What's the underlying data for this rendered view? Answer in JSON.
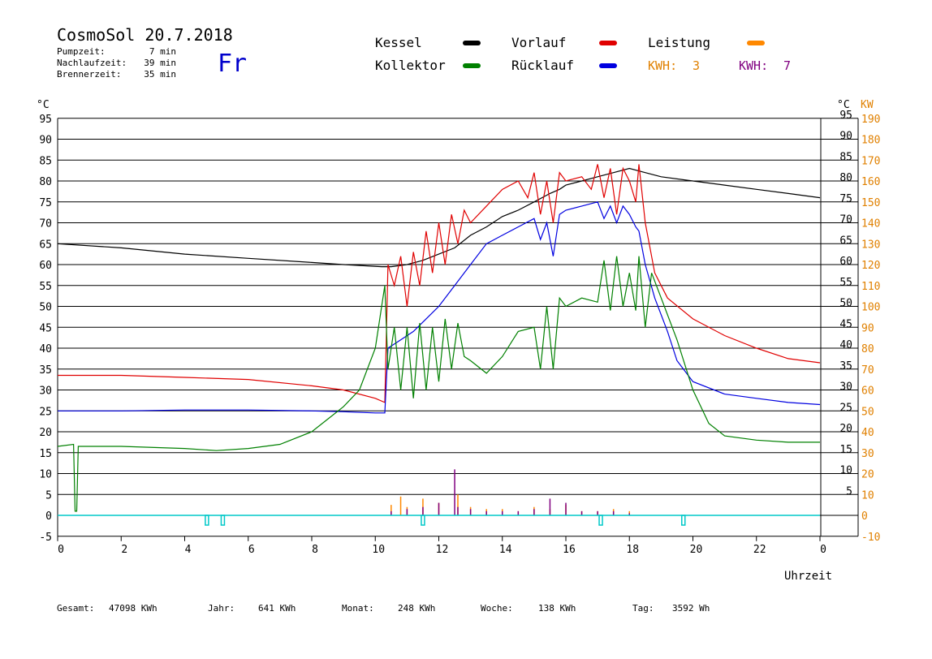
{
  "header": {
    "title": "CosmoSol 20.7.2018",
    "day": "Fr",
    "times": [
      {
        "label": "Pumpzeit:",
        "value": "7 min"
      },
      {
        "label": "Nachlaufzeit:",
        "value": "39 min"
      },
      {
        "label": "Brennerzeit:",
        "value": "35 min"
      }
    ]
  },
  "legend": {
    "items": [
      {
        "label": "Kessel",
        "color": "#000000"
      },
      {
        "label": "Vorlauf",
        "color": "#e00000"
      },
      {
        "label": "Leistung",
        "color": "#ff8800"
      },
      {
        "label": "Kollektor",
        "color": "#008000"
      },
      {
        "label": "Rücklauf",
        "color": "#0000e0"
      }
    ],
    "kwh": [
      {
        "label": "KWH:",
        "value": "3",
        "color": "#e08000"
      },
      {
        "label": "KWH:",
        "value": "7",
        "color": "#800080"
      }
    ]
  },
  "axes": {
    "left_unit": "°C",
    "right_unit_c": "°C",
    "right_unit_kw": "KW",
    "xlabel": "Uhrzeit",
    "x_ticks": [
      "0",
      "2",
      "4",
      "6",
      "8",
      "10",
      "12",
      "14",
      "16",
      "18",
      "20",
      "22",
      "0"
    ],
    "y_ticks_left": [
      "-5",
      "0",
      "5",
      "10",
      "15",
      "20",
      "25",
      "30",
      "35",
      "40",
      "45",
      "50",
      "55",
      "60",
      "65",
      "70",
      "75",
      "80",
      "85",
      "90",
      "95"
    ],
    "y_ticks_right_c": [
      "5",
      "10",
      "15",
      "20",
      "25",
      "30",
      "35",
      "40",
      "45",
      "50",
      "55",
      "60",
      "65",
      "70",
      "75",
      "80",
      "85",
      "90",
      "95"
    ],
    "y_ticks_right_kw": [
      "-10",
      "0",
      "10",
      "20",
      "30",
      "40",
      "50",
      "60",
      "70",
      "80",
      "90",
      "100",
      "110",
      "120",
      "130",
      "140",
      "150",
      "160",
      "170",
      "180",
      "190"
    ]
  },
  "footer": [
    {
      "label": "Gesamt:",
      "value": "47098 KWh"
    },
    {
      "label": "Jahr:",
      "value": "641 KWh"
    },
    {
      "label": "Monat:",
      "value": "248 KWh"
    },
    {
      "label": "Woche:",
      "value": "138 KWh"
    },
    {
      "label": "Tag:",
      "value": "3592 Wh"
    }
  ],
  "chart_data": {
    "type": "line",
    "title": "CosmoSol 20.7.2018",
    "xlabel": "Uhrzeit",
    "ylabel": "°C",
    "xlim": [
      0,
      24
    ],
    "ylim": [
      -5,
      100
    ],
    "grid": true,
    "legend_position": "top",
    "series": [
      {
        "name": "Kessel",
        "color": "#000000",
        "points": [
          [
            0,
            65
          ],
          [
            2,
            64
          ],
          [
            4,
            62.5
          ],
          [
            6,
            61.5
          ],
          [
            8,
            60.5
          ],
          [
            9,
            60
          ],
          [
            10.2,
            59.5
          ],
          [
            10.5,
            59.5
          ],
          [
            11,
            60
          ],
          [
            11.5,
            61
          ],
          [
            12,
            62.5
          ],
          [
            12.5,
            64
          ],
          [
            13,
            67
          ],
          [
            13.5,
            69
          ],
          [
            14,
            71.5
          ],
          [
            14.5,
            73
          ],
          [
            15,
            75
          ],
          [
            15.5,
            77
          ],
          [
            15.8,
            78
          ],
          [
            16,
            79
          ],
          [
            16.5,
            80
          ],
          [
            17,
            81
          ],
          [
            17.5,
            82
          ],
          [
            18,
            83
          ],
          [
            18.5,
            82
          ],
          [
            19,
            81
          ],
          [
            20,
            80
          ],
          [
            21,
            79
          ],
          [
            22,
            78
          ],
          [
            23,
            77
          ],
          [
            24,
            76
          ]
        ]
      },
      {
        "name": "Vorlauf",
        "color": "#e00000",
        "points": [
          [
            0,
            33.5
          ],
          [
            2,
            33.5
          ],
          [
            4,
            33
          ],
          [
            6,
            32.5
          ],
          [
            8,
            31
          ],
          [
            9,
            30
          ],
          [
            10,
            28
          ],
          [
            10.3,
            27
          ],
          [
            10.4,
            60
          ],
          [
            10.6,
            55
          ],
          [
            10.8,
            62
          ],
          [
            11,
            50
          ],
          [
            11.2,
            63
          ],
          [
            11.4,
            55
          ],
          [
            11.6,
            68
          ],
          [
            11.8,
            58
          ],
          [
            12,
            70
          ],
          [
            12.2,
            60
          ],
          [
            12.4,
            72
          ],
          [
            12.6,
            65
          ],
          [
            12.8,
            73
          ],
          [
            13,
            70
          ],
          [
            13.5,
            74
          ],
          [
            14,
            78
          ],
          [
            14.5,
            80
          ],
          [
            14.8,
            76
          ],
          [
            15,
            82
          ],
          [
            15.2,
            72
          ],
          [
            15.4,
            80
          ],
          [
            15.6,
            70
          ],
          [
            15.8,
            82
          ],
          [
            16,
            80
          ],
          [
            16.5,
            81
          ],
          [
            16.8,
            78
          ],
          [
            17,
            84
          ],
          [
            17.2,
            76
          ],
          [
            17.4,
            83
          ],
          [
            17.6,
            72
          ],
          [
            17.8,
            83
          ],
          [
            18,
            80
          ],
          [
            18.2,
            75
          ],
          [
            18.3,
            84
          ],
          [
            18.5,
            70
          ],
          [
            18.8,
            58
          ],
          [
            19.2,
            52
          ],
          [
            20,
            47
          ],
          [
            21,
            43
          ],
          [
            22,
            40
          ],
          [
            23,
            37.5
          ],
          [
            24,
            36.5
          ]
        ]
      },
      {
        "name": "Rücklauf",
        "color": "#0000e0",
        "points": [
          [
            0,
            25
          ],
          [
            2,
            25
          ],
          [
            4,
            25.2
          ],
          [
            6,
            25.2
          ],
          [
            8,
            25
          ],
          [
            9,
            24.8
          ],
          [
            10,
            24.5
          ],
          [
            10.3,
            24.5
          ],
          [
            10.4,
            40
          ],
          [
            10.8,
            42
          ],
          [
            11.2,
            44
          ],
          [
            11.6,
            47
          ],
          [
            12,
            50
          ],
          [
            12.5,
            55
          ],
          [
            13,
            60
          ],
          [
            13.5,
            65
          ],
          [
            14,
            67
          ],
          [
            14.5,
            69
          ],
          [
            15,
            71
          ],
          [
            15.2,
            66
          ],
          [
            15.4,
            70
          ],
          [
            15.6,
            62
          ],
          [
            15.8,
            72
          ],
          [
            16,
            73
          ],
          [
            16.5,
            74
          ],
          [
            17,
            75
          ],
          [
            17.2,
            71
          ],
          [
            17.4,
            74
          ],
          [
            17.6,
            70
          ],
          [
            17.8,
            74
          ],
          [
            18,
            72
          ],
          [
            18.2,
            69
          ],
          [
            18.3,
            68
          ],
          [
            18.5,
            60
          ],
          [
            18.8,
            52
          ],
          [
            19.2,
            44
          ],
          [
            19.5,
            37
          ],
          [
            20,
            32
          ],
          [
            21,
            29
          ],
          [
            22,
            28
          ],
          [
            23,
            27
          ],
          [
            24,
            26.5
          ]
        ]
      },
      {
        "name": "Kollektor",
        "color": "#008000",
        "points": [
          [
            0,
            16.5
          ],
          [
            0.5,
            17
          ],
          [
            0.55,
            1
          ],
          [
            0.6,
            1
          ],
          [
            0.65,
            16.5
          ],
          [
            1,
            16.5
          ],
          [
            2,
            16.5
          ],
          [
            4,
            16
          ],
          [
            5,
            15.5
          ],
          [
            6,
            16
          ],
          [
            7,
            17
          ],
          [
            8,
            20
          ],
          [
            8.5,
            23
          ],
          [
            9,
            26
          ],
          [
            9.5,
            30
          ],
          [
            10,
            40
          ],
          [
            10.3,
            55
          ],
          [
            10.4,
            35
          ],
          [
            10.6,
            45
          ],
          [
            10.8,
            30
          ],
          [
            11,
            45
          ],
          [
            11.2,
            28
          ],
          [
            11.4,
            46
          ],
          [
            11.6,
            30
          ],
          [
            11.8,
            45
          ],
          [
            12,
            32
          ],
          [
            12.2,
            47
          ],
          [
            12.4,
            35
          ],
          [
            12.6,
            46
          ],
          [
            12.8,
            38
          ],
          [
            13,
            37
          ],
          [
            13.5,
            34
          ],
          [
            14,
            38
          ],
          [
            14.5,
            44
          ],
          [
            15,
            45
          ],
          [
            15.2,
            35
          ],
          [
            15.4,
            50
          ],
          [
            15.6,
            35
          ],
          [
            15.8,
            52
          ],
          [
            16,
            50
          ],
          [
            16.5,
            52
          ],
          [
            17,
            51
          ],
          [
            17.2,
            61
          ],
          [
            17.4,
            49
          ],
          [
            17.6,
            62
          ],
          [
            17.8,
            50
          ],
          [
            18,
            58
          ],
          [
            18.2,
            49
          ],
          [
            18.3,
            62
          ],
          [
            18.5,
            45
          ],
          [
            18.7,
            58
          ],
          [
            19,
            52
          ],
          [
            19.5,
            42
          ],
          [
            20,
            30
          ],
          [
            20.5,
            22
          ],
          [
            21,
            19
          ],
          [
            22,
            18
          ],
          [
            23,
            17.5
          ],
          [
            24,
            17.5
          ]
        ]
      }
    ],
    "power_series": [
      {
        "name": "Leistung",
        "color": "#ff8800",
        "unit": "KW",
        "points": [
          [
            10.3,
            0
          ],
          [
            10.5,
            5
          ],
          [
            10.8,
            9
          ],
          [
            11,
            4
          ],
          [
            11.5,
            8
          ],
          [
            12,
            6
          ],
          [
            12.6,
            10
          ],
          [
            13,
            4
          ],
          [
            13.5,
            3
          ],
          [
            14,
            3
          ],
          [
            14.5,
            2
          ],
          [
            15,
            4
          ],
          [
            15.5,
            3
          ],
          [
            16,
            5
          ],
          [
            16.5,
            2
          ],
          [
            17,
            2
          ],
          [
            17.5,
            3
          ],
          [
            18,
            2
          ],
          [
            18.2,
            0
          ]
        ]
      },
      {
        "name": "KWH",
        "color": "#800080",
        "unit": "KW",
        "points": [
          [
            10.3,
            0
          ],
          [
            10.5,
            2
          ],
          [
            11,
            3
          ],
          [
            11.5,
            4
          ],
          [
            12,
            6
          ],
          [
            12.5,
            22
          ],
          [
            12.6,
            4
          ],
          [
            13,
            3
          ],
          [
            13.5,
            2
          ],
          [
            14,
            2
          ],
          [
            14.5,
            2
          ],
          [
            15,
            3
          ],
          [
            15.5,
            8
          ],
          [
            16,
            6
          ],
          [
            16.5,
            2
          ],
          [
            17,
            2
          ],
          [
            17.5,
            2
          ],
          [
            18,
            1
          ],
          [
            18.2,
            0
          ]
        ]
      }
    ],
    "markers": {
      "name": "Brenner",
      "color": "#00c8c8",
      "y": 0,
      "ticks": [
        4.7,
        5.2,
        11.5,
        17.1,
        19.7
      ]
    }
  }
}
